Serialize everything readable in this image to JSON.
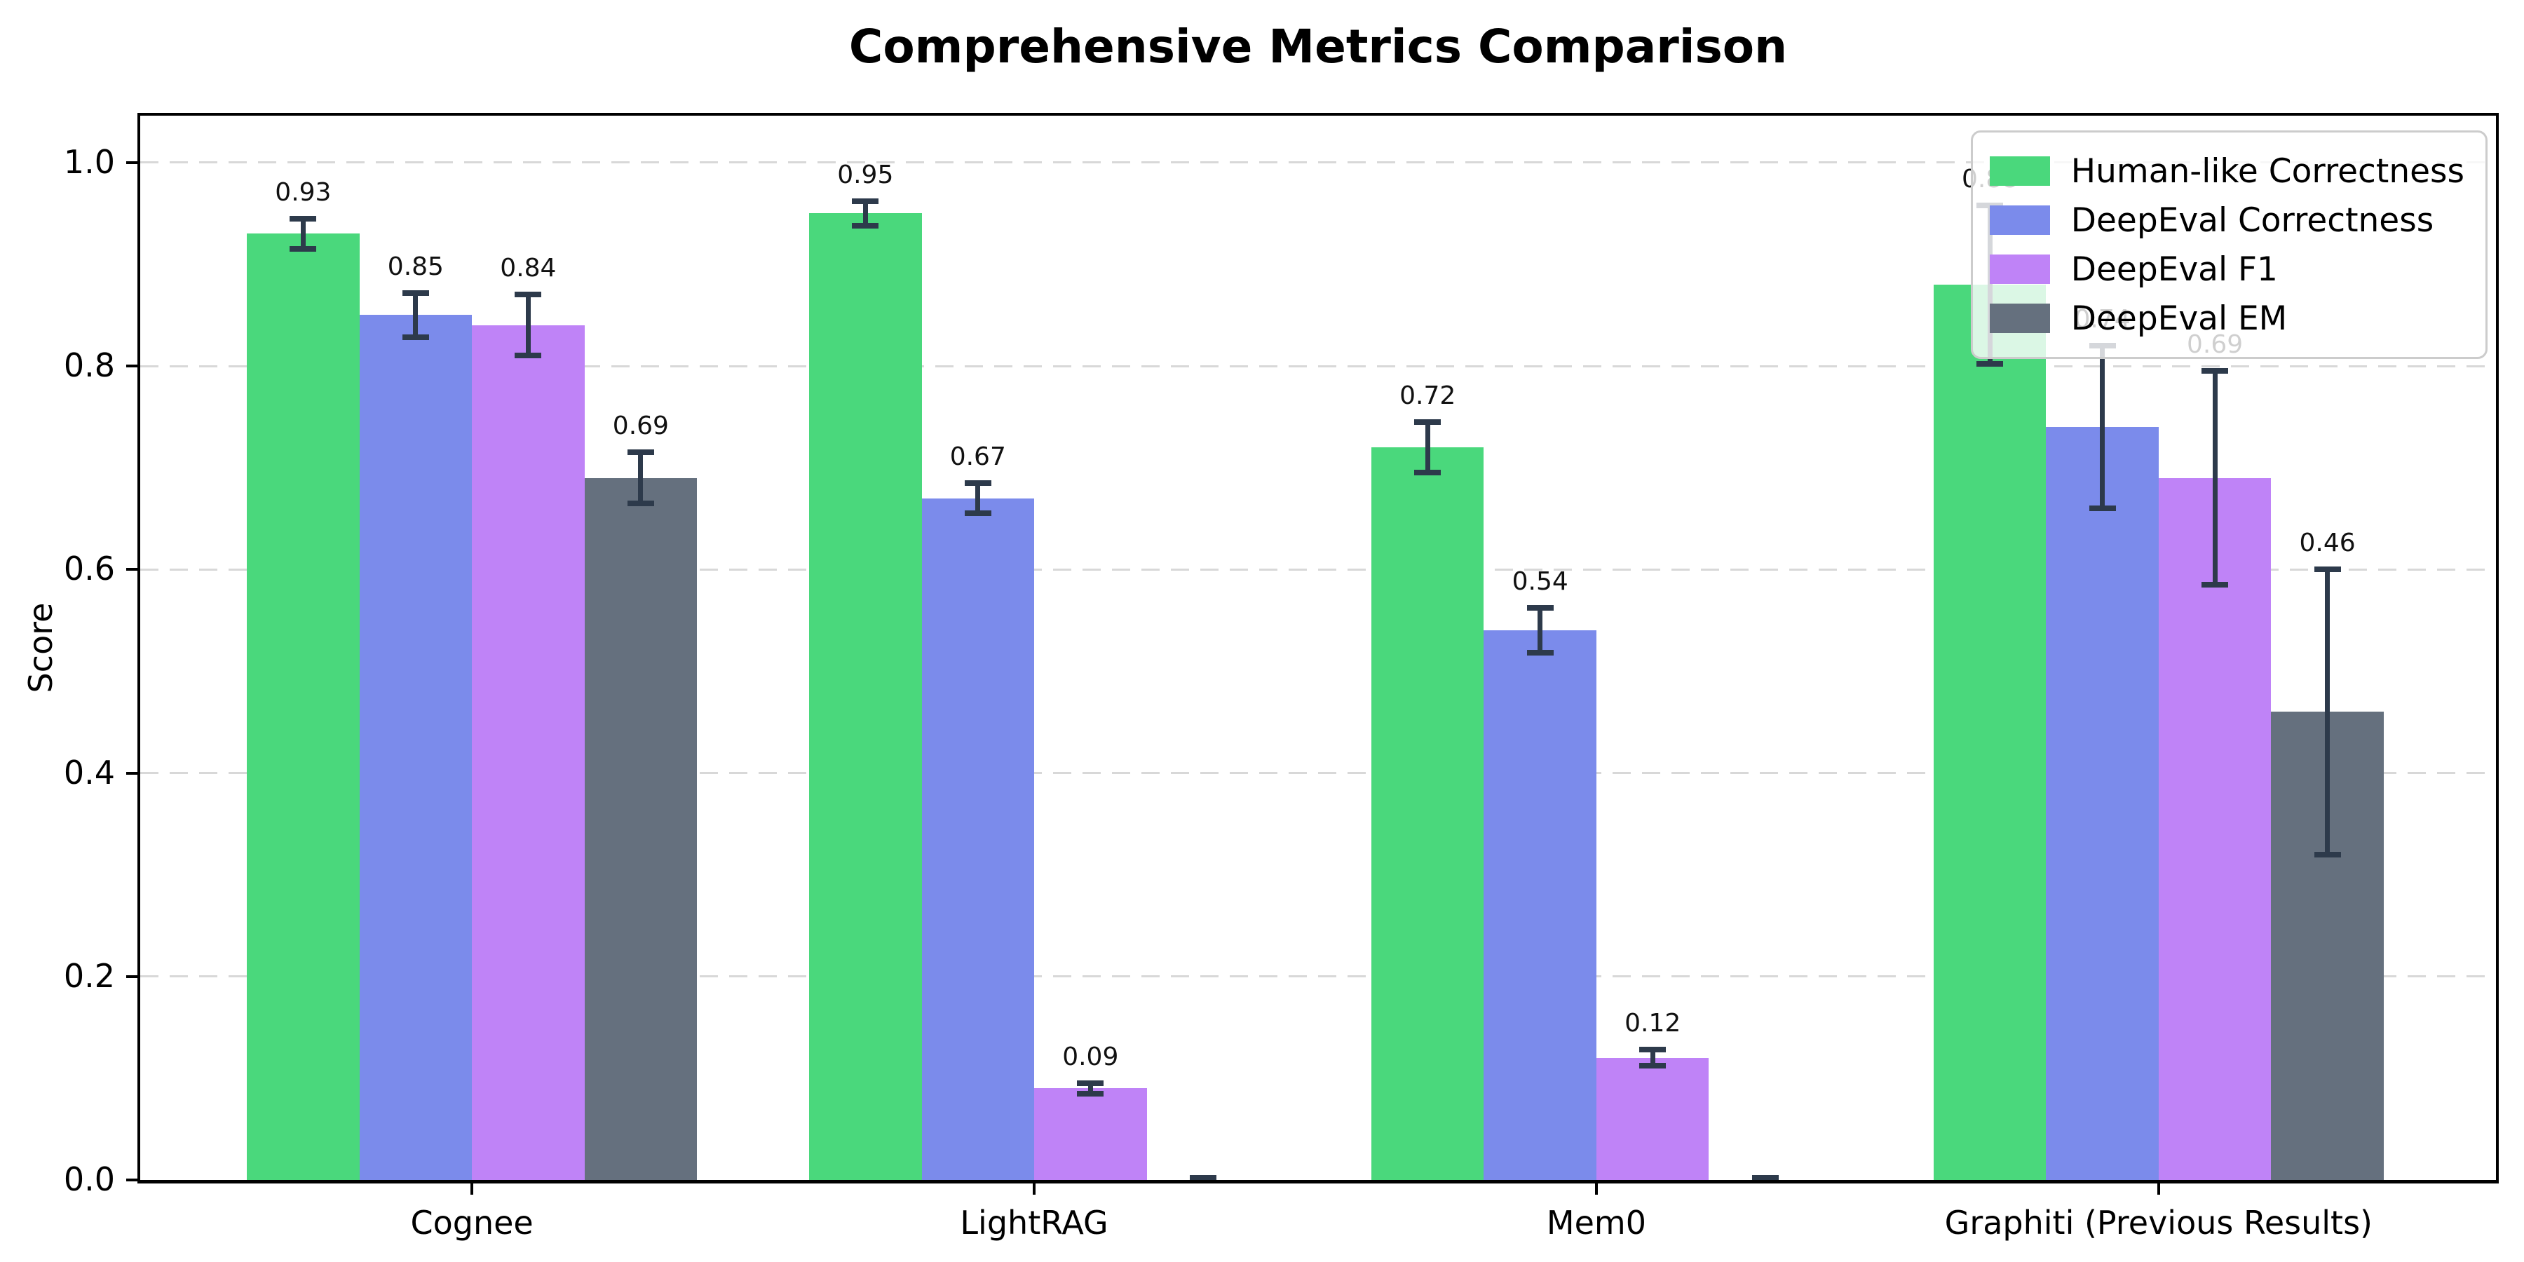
{
  "chart_data": {
    "type": "bar",
    "title": "Comprehensive Metrics Comparison",
    "ylabel": "Score",
    "xlabel": "",
    "categories": [
      "Cognee",
      "LightRAG",
      "Mem0",
      "Graphiti (Previous Results)"
    ],
    "series": [
      {
        "name": "Human-like Correctness",
        "color": "#4ad87c",
        "values": [
          0.93,
          0.95,
          0.72,
          0.88
        ],
        "errors": [
          0.015,
          0.012,
          0.025,
          0.078
        ],
        "labels": [
          "0.93",
          "0.95",
          "0.72",
          "0.88"
        ]
      },
      {
        "name": "DeepEval Correctness",
        "color": "#7b8beb",
        "values": [
          0.85,
          0.67,
          0.54,
          0.74
        ],
        "errors": [
          0.022,
          0.015,
          0.022,
          0.08
        ],
        "labels": [
          "0.85",
          "0.67",
          "0.54",
          "0.74"
        ]
      },
      {
        "name": "DeepEval F1",
        "color": "#bf83f7",
        "values": [
          0.84,
          0.09,
          0.12,
          0.69
        ],
        "errors": [
          0.03,
          0.005,
          0.008,
          0.105
        ],
        "labels": [
          "0.84",
          "0.09",
          "0.12",
          "0.69"
        ]
      },
      {
        "name": "DeepEval EM",
        "color": "#65707e",
        "values": [
          0.69,
          0.0,
          0.0,
          0.46
        ],
        "errors": [
          0.025,
          0.002,
          0.002,
          0.14
        ],
        "labels": [
          "0.69",
          "",
          "",
          "0.46"
        ]
      }
    ],
    "yticks": [
      "0.0",
      "0.2",
      "0.4",
      "0.6",
      "0.8",
      "1.0"
    ],
    "ylim": [
      0,
      1.046
    ],
    "grid": "dashed-horizontal",
    "legend_position": "upper-right",
    "colors": {
      "error_bar": "#2d3a4b",
      "grid_line": "#d8d8d8",
      "axis": "#000000",
      "background": "#ffffff"
    }
  }
}
